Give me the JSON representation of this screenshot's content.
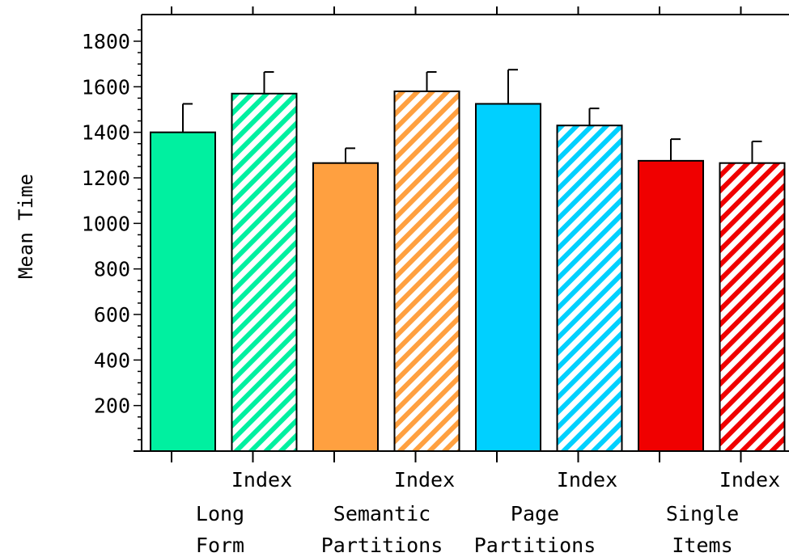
{
  "chart_data": {
    "type": "bar",
    "title": "",
    "xlabel": "",
    "ylabel": "Mean Time",
    "ylim": [
      0,
      1900
    ],
    "yticks": [
      200,
      400,
      600,
      800,
      1000,
      1200,
      1400,
      1600,
      1800
    ],
    "grid": false,
    "legend": "none",
    "bar_label": "Index",
    "groups": [
      {
        "label_line1": "Long",
        "label_line2": "Form",
        "color": "#00f0a0"
      },
      {
        "label_line1": "Semantic",
        "label_line2": "Partitions",
        "color": "#ffa040"
      },
      {
        "label_line1": "Page",
        "label_line2": "Partitions",
        "color": "#00d0ff"
      },
      {
        "label_line1": "Single",
        "label_line2": "Items",
        "color": "#f00000"
      }
    ],
    "bars": [
      {
        "group": 0,
        "pattern": "solid",
        "value": 1400,
        "error": 125
      },
      {
        "group": 0,
        "pattern": "hatched",
        "value": 1570,
        "error": 95
      },
      {
        "group": 1,
        "pattern": "solid",
        "value": 1265,
        "error": 65
      },
      {
        "group": 1,
        "pattern": "hatched",
        "value": 1580,
        "error": 85
      },
      {
        "group": 2,
        "pattern": "solid",
        "value": 1525,
        "error": 150
      },
      {
        "group": 2,
        "pattern": "hatched",
        "value": 1430,
        "error": 75
      },
      {
        "group": 3,
        "pattern": "solid",
        "value": 1275,
        "error": 95
      },
      {
        "group": 3,
        "pattern": "hatched",
        "value": 1265,
        "error": 95
      }
    ]
  }
}
